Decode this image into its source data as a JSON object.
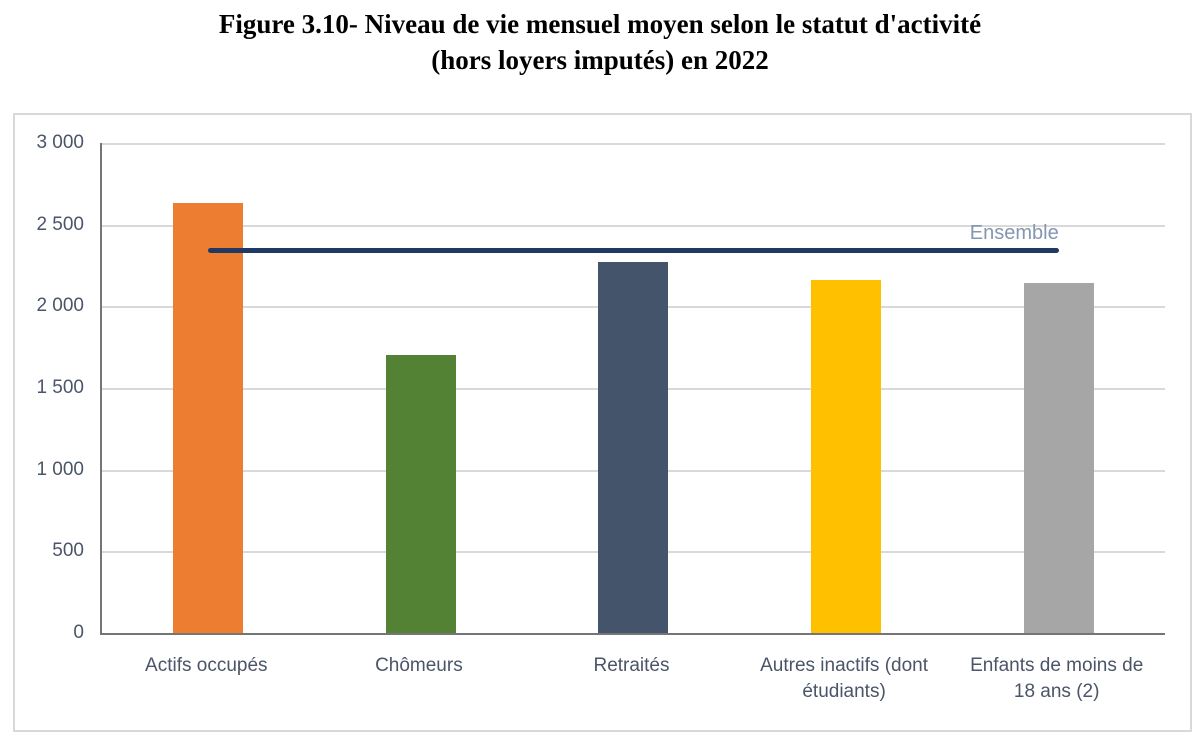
{
  "title": {
    "line1": "Figure 3.10- Niveau de vie mensuel moyen selon le statut d'activité",
    "line2": "(hors loyers imputés) en 2022"
  },
  "chart_data": {
    "type": "bar",
    "title": "Figure 3.10- Niveau de vie mensuel moyen selon le statut d'activité (hors loyers imputés) en 2022",
    "categories": [
      "Actifs occupés",
      "Chômeurs",
      "Retraités",
      "Autres inactifs (dont\nétudiants)",
      "Enfants de moins de\n18 ans (2)"
    ],
    "values": [
      2630,
      1700,
      2270,
      2160,
      2140
    ],
    "bar_colors": [
      "#ED7D31",
      "#548235",
      "#44546A",
      "#FFC000",
      "#A6A6A6"
    ],
    "reference_line": {
      "label": "Ensemble",
      "value": 2340,
      "color": "#1F3864",
      "label_color": "#8496B0"
    },
    "xlabel": "",
    "ylabel": "",
    "ylim": [
      0,
      3000
    ],
    "ytick_interval": 500,
    "yticks_labels": [
      "0",
      "500",
      "1 000",
      "1 500",
      "2 000",
      "2 500",
      "3 000"
    ],
    "grid": true,
    "gridline_color": "#D9D9D9",
    "axis_color": "#757575",
    "tick_label_color": "#4a5568",
    "legend_position": "none"
  }
}
